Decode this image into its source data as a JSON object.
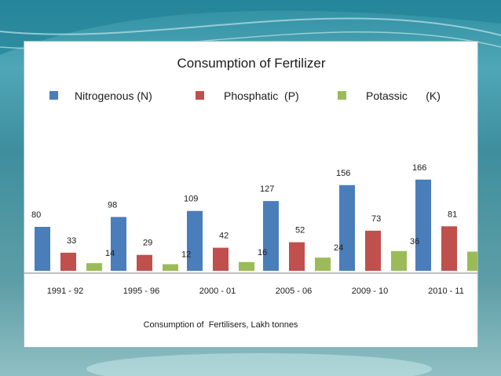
{
  "chart_data": {
    "type": "bar",
    "title": "Consumption of Fertilizer",
    "caption": "Consumption of  Fertilisers, Lakh tonnes",
    "categories": [
      "1991 - 92",
      "1995 - 96",
      "2000 - 01",
      "2005 - 06",
      "2009 - 10",
      "2010 - 11"
    ],
    "series": [
      {
        "name": "Nitrogenous (N)",
        "color": "#4a7ebb",
        "values": [
          80,
          98,
          109,
          127,
          156,
          166
        ]
      },
      {
        "name": "Phosphatic  (P)",
        "color": "#c0504d",
        "values": [
          33,
          29,
          42,
          52,
          73,
          81
        ]
      },
      {
        "name": "Potassic      (K)",
        "color": "#9bbb59",
        "values": [
          14,
          12,
          16,
          24,
          36,
          35
        ]
      }
    ],
    "ylim": [
      0,
      175
    ],
    "grid": false,
    "legend_position": "top"
  }
}
